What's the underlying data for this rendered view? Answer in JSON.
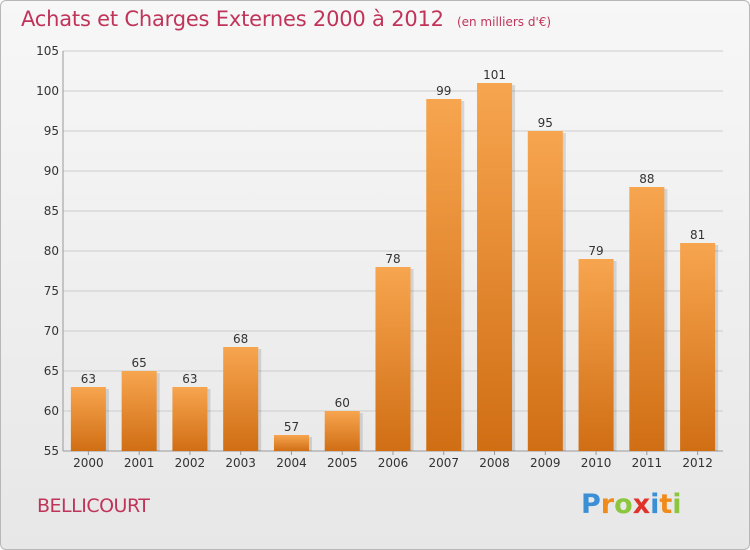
{
  "header": {
    "title": "Achats et Charges Externes 2000 à 2012",
    "subtitle": "(en milliers d'€)"
  },
  "footer": {
    "place": "BELLICOURT",
    "logo_text": "Proxiti",
    "logo_letters": [
      {
        "ch": "P",
        "color": "#3a8fd6"
      },
      {
        "ch": "r",
        "color": "#f08a1a"
      },
      {
        "ch": "o",
        "color": "#8cc63f"
      },
      {
        "ch": "x",
        "color": "#e0322a"
      },
      {
        "ch": "i",
        "color": "#3a8fd6"
      },
      {
        "ch": "t",
        "color": "#f08a1a"
      },
      {
        "ch": "i",
        "color": "#8cc63f"
      }
    ]
  },
  "colors": {
    "title": "#c0345a",
    "bar_top": "#f7a54f",
    "bar_bottom": "#d06e14",
    "grid": "#cccccc"
  },
  "chart_data": {
    "type": "bar",
    "categories": [
      "2000",
      "2001",
      "2002",
      "2003",
      "2004",
      "2005",
      "2006",
      "2007",
      "2008",
      "2009",
      "2010",
      "2011",
      "2012"
    ],
    "values": [
      63,
      65,
      63,
      68,
      57,
      60,
      78,
      99,
      101,
      95,
      79,
      88,
      81
    ],
    "ylim": [
      55,
      105
    ],
    "yticks": [
      55,
      60,
      65,
      70,
      75,
      80,
      85,
      90,
      95,
      100,
      105
    ],
    "grid": true,
    "data_labels": true
  }
}
